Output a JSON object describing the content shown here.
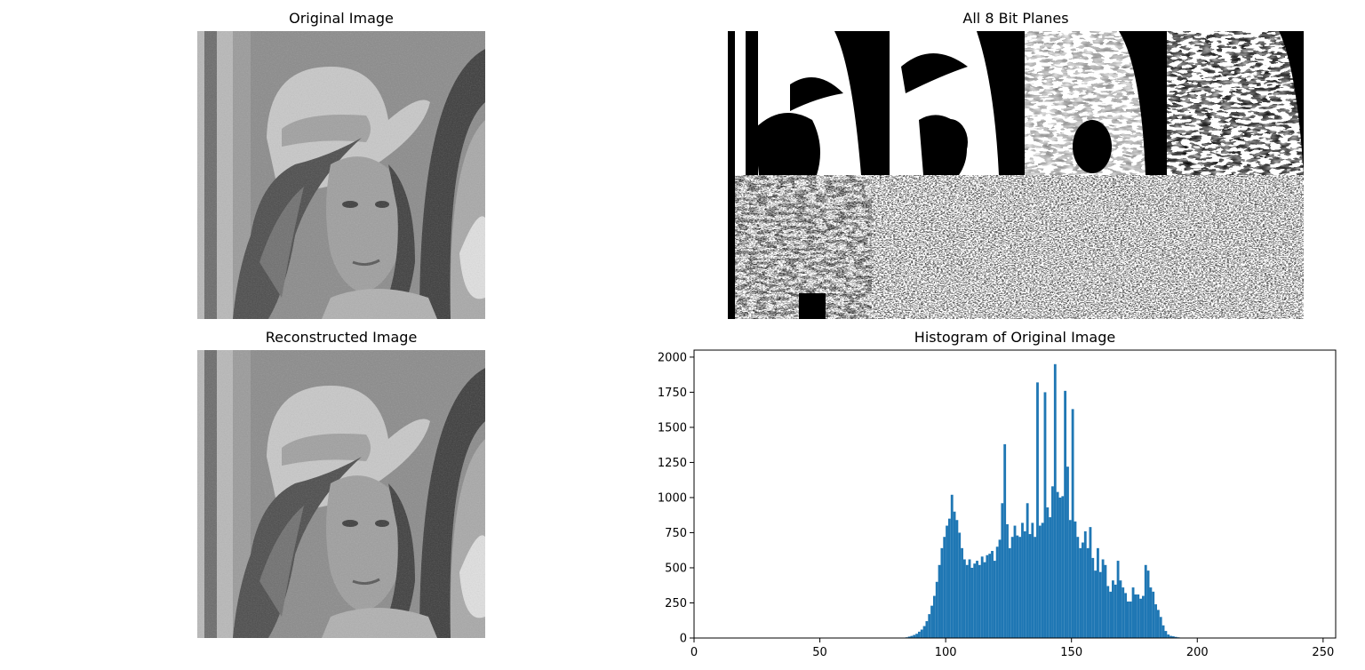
{
  "panels": {
    "original": {
      "title": "Original Image"
    },
    "bitplanes": {
      "title": "All 8 Bit Planes"
    },
    "reconstructed": {
      "title": "Reconstructed Image"
    }
  },
  "chart_data": {
    "type": "bar",
    "title": "Histogram of Original Image",
    "xlabel": "",
    "ylabel": "",
    "xlim": [
      0,
      255
    ],
    "ylim": [
      0,
      2050
    ],
    "xticks": [
      0,
      50,
      100,
      150,
      200,
      250
    ],
    "yticks": [
      0,
      250,
      500,
      750,
      1000,
      1250,
      1500,
      1750,
      2000
    ],
    "bar_color": "#1f77b4",
    "grid": false,
    "x": [
      84,
      85,
      86,
      87,
      88,
      89,
      90,
      91,
      92,
      93,
      94,
      95,
      96,
      97,
      98,
      99,
      100,
      101,
      102,
      103,
      104,
      105,
      106,
      107,
      108,
      109,
      110,
      111,
      112,
      113,
      114,
      115,
      116,
      117,
      118,
      119,
      120,
      121,
      122,
      123,
      124,
      125,
      126,
      127,
      128,
      129,
      130,
      131,
      132,
      133,
      134,
      135,
      136,
      137,
      138,
      139,
      140,
      141,
      142,
      143,
      144,
      145,
      146,
      147,
      148,
      149,
      150,
      151,
      152,
      153,
      154,
      155,
      156,
      157,
      158,
      159,
      160,
      161,
      162,
      163,
      164,
      165,
      166,
      167,
      168,
      169,
      170,
      171,
      172,
      173,
      174,
      175,
      176,
      177,
      178,
      179,
      180,
      181,
      182,
      183,
      184,
      185,
      186,
      187,
      188,
      189,
      190,
      191,
      192,
      193,
      194
    ],
    "values": [
      5,
      10,
      15,
      22,
      30,
      45,
      60,
      85,
      120,
      170,
      230,
      300,
      400,
      520,
      640,
      720,
      800,
      850,
      1020,
      900,
      840,
      750,
      640,
      560,
      520,
      560,
      500,
      530,
      550,
      520,
      580,
      540,
      590,
      600,
      620,
      550,
      650,
      700,
      960,
      1380,
      810,
      640,
      720,
      800,
      730,
      720,
      820,
      760,
      960,
      740,
      820,
      720,
      1820,
      800,
      820,
      1750,
      930,
      860,
      1080,
      1950,
      1040,
      1000,
      1010,
      1760,
      1220,
      840,
      1630,
      830,
      720,
      640,
      680,
      760,
      640,
      790,
      570,
      480,
      640,
      470,
      560,
      520,
      370,
      330,
      410,
      380,
      550,
      410,
      360,
      320,
      260,
      260,
      360,
      310,
      310,
      280,
      300,
      520,
      480,
      360,
      330,
      240,
      200,
      150,
      90,
      50,
      25,
      15,
      12,
      8,
      5,
      3,
      2
    ]
  }
}
